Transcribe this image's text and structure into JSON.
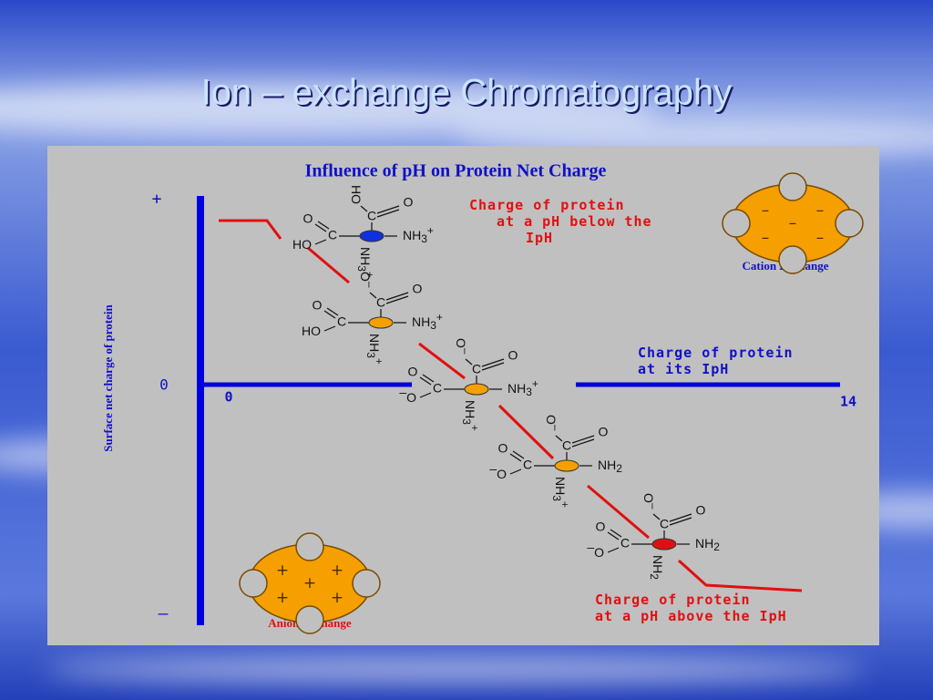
{
  "title": "Ion – exchange Chromatography",
  "diagram": {
    "title": "Influence of pH on Protein Net Charge",
    "y_axis_label": "Surface net charge of protein",
    "y_marks": [
      "+",
      "0",
      "–"
    ],
    "x_marks": [
      "0",
      "14"
    ],
    "notes": {
      "below": [
        "Charge of protein",
        "at a pH below the",
        "IpH"
      ],
      "at": [
        "Charge of protein",
        "at its IpH"
      ],
      "above": [
        "Charge of protein",
        "at a pH above the IpH"
      ]
    },
    "cation_exchange": {
      "label": "Cation Exchange",
      "signs": [
        "–",
        "–",
        "–",
        "–",
        "–"
      ]
    },
    "anion_exchange": {
      "label": "Anion Exchange",
      "signs": [
        "+",
        "+",
        "+",
        "+",
        "+"
      ]
    },
    "molecules": [
      {
        "color": "#1030e0",
        "top_left": {
          "text": "HO"
        },
        "top_c": "C",
        "top_right": "O",
        "left_o": "O",
        "left_c": "C",
        "left_low": {
          "text": "HO"
        },
        "right": {
          "text": "NH",
          "sub": "3",
          "sup": "+"
        },
        "bottom": {
          "text": "NH",
          "sub": "3",
          "sup": "+"
        }
      },
      {
        "color": "#f5a000",
        "top_left": {
          "text": "O",
          "sup": "–"
        },
        "top_c": "C",
        "top_right": "O",
        "left_o": "O",
        "left_c": "C",
        "left_low": {
          "text": "HO"
        },
        "right": {
          "text": "NH",
          "sub": "3",
          "sup": "+"
        },
        "bottom": {
          "text": "NH",
          "sub": "3",
          "sup": "+"
        }
      },
      {
        "color": "#f5a000",
        "top_left": {
          "text": "O",
          "sup": "–"
        },
        "top_c": "C",
        "top_right": "O",
        "left_o": "O",
        "left_c": "C",
        "left_low": {
          "pre": "–",
          "text": "O"
        },
        "right": {
          "text": "NH",
          "sub": "3",
          "sup": "+"
        },
        "bottom": {
          "text": "NH",
          "sub": "3",
          "sup": "+"
        }
      },
      {
        "color": "#f5a000",
        "top_left": {
          "text": "O",
          "sup": "–"
        },
        "top_c": "C",
        "top_right": "O",
        "left_o": "O",
        "left_c": "C",
        "left_low": {
          "pre": "–",
          "text": "O"
        },
        "right": {
          "text": "NH",
          "sub": "2"
        },
        "bottom": {
          "text": "NH",
          "sub": "3",
          "sup": "+"
        }
      },
      {
        "color": "#e01010",
        "top_left": {
          "text": "O",
          "sup": "–"
        },
        "top_c": "C",
        "top_right": "O",
        "left_o": "O",
        "left_c": "C",
        "left_low": {
          "pre": "–",
          "text": "O"
        },
        "right": {
          "text": "NH",
          "sub": "2"
        },
        "bottom": {
          "text": "NH",
          "sub": "2"
        }
      }
    ]
  }
}
